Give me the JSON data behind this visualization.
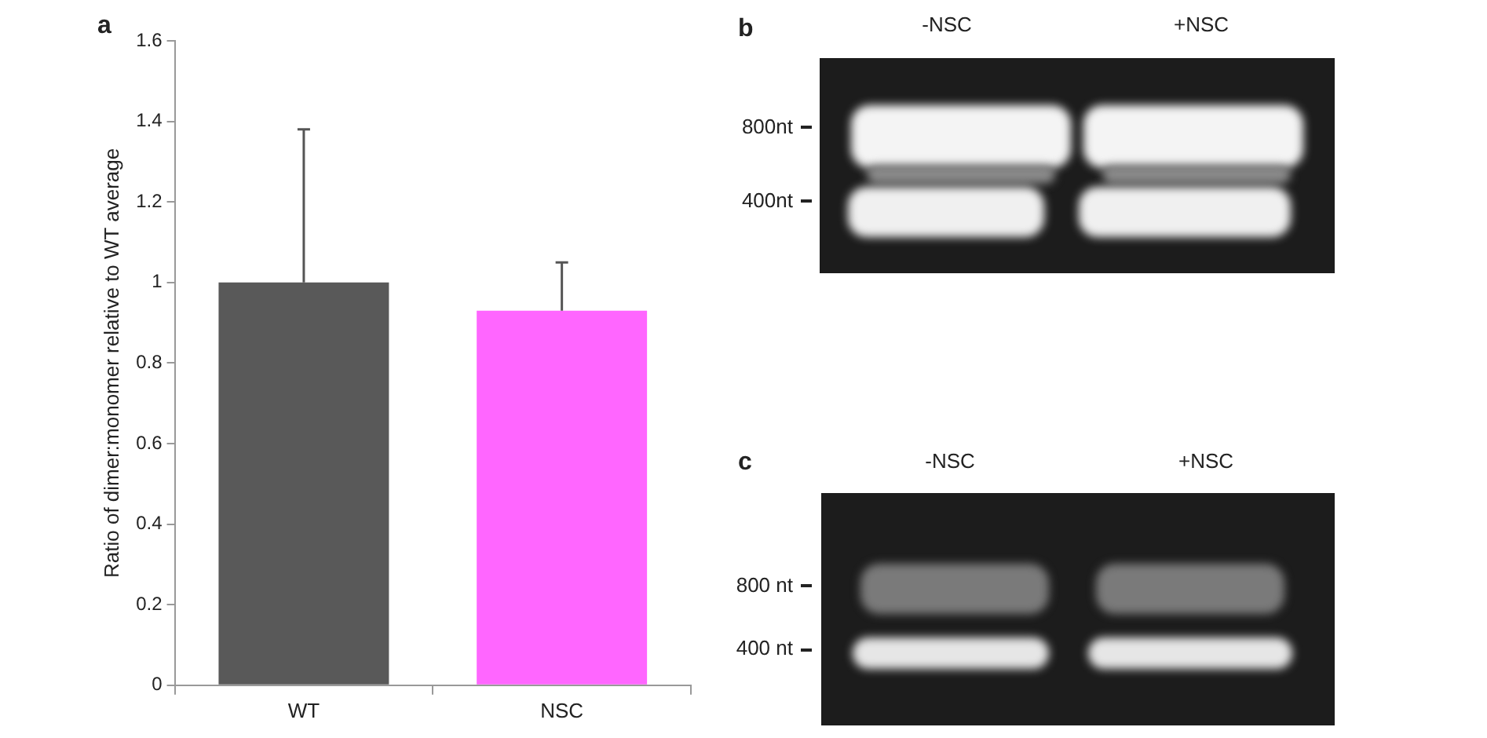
{
  "chart_data": {
    "type": "bar",
    "ylabel": "Ratio of dimer:monomer relative to WT average",
    "categories": [
      "WT",
      "NSC"
    ],
    "values": [
      1,
      0.93
    ],
    "colors": [
      "#595959",
      "#ff66ff"
    ],
    "errors": [
      [
        1,
        1.38
      ],
      [
        0.93,
        1.05
      ]
    ],
    "ylim": [
      0,
      1.6
    ],
    "yticks": [
      0,
      0.2,
      0.4,
      0.6,
      0.8,
      1,
      1.2,
      1.4,
      1.6
    ],
    "grid": false,
    "legend": false,
    "annotations": [
      "a",
      "b",
      "-NSC",
      "+NSC",
      "800nt",
      "400nt",
      "c",
      "-NSC",
      "+NSC",
      "800 nt",
      "400 nt"
    ]
  }
}
